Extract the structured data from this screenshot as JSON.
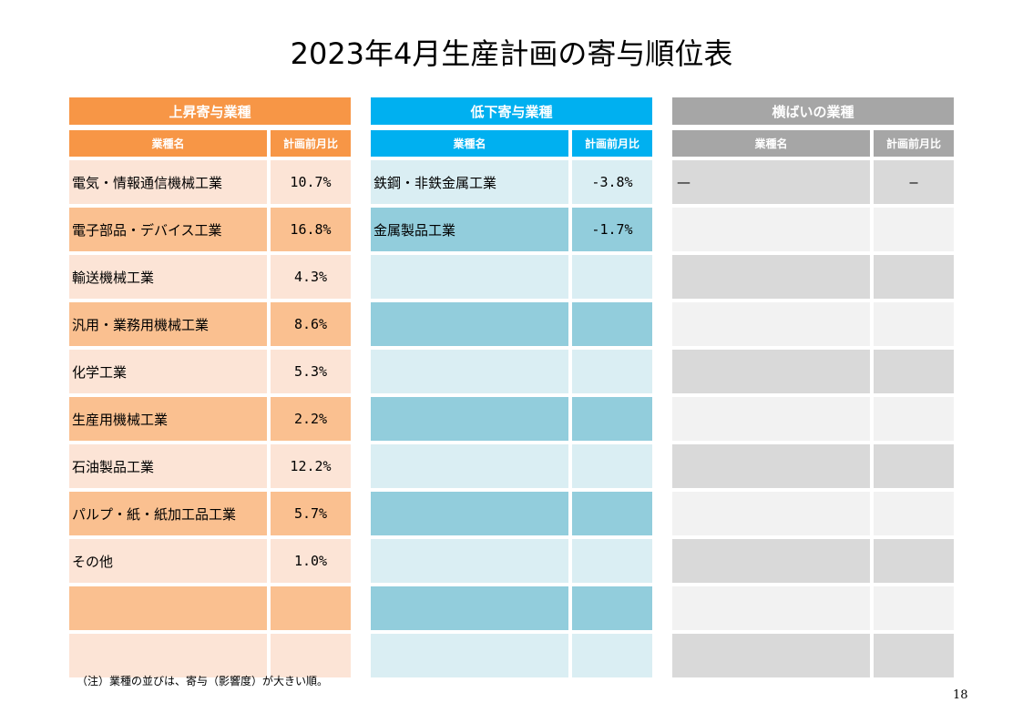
{
  "title": "2023年4月生産計画の寄与順位表",
  "groups": {
    "up": {
      "header": "上昇寄与業種",
      "col_name": "業種名",
      "col_value": "計画前月比",
      "rows": [
        {
          "name": "電気・情報通信機械工業",
          "value": "10.7%"
        },
        {
          "name": "電子部品・デバイス工業",
          "value": "16.8%"
        },
        {
          "name": "輸送機械工業",
          "value": "4.3%"
        },
        {
          "name": "汎用・業務用機械工業",
          "value": "8.6%"
        },
        {
          "name": "化学工業",
          "value": "5.3%"
        },
        {
          "name": "生産用機械工業",
          "value": "2.2%"
        },
        {
          "name": "石油製品工業",
          "value": "12.2%"
        },
        {
          "name": "パルプ・紙・紙加工品工業",
          "value": "5.7%"
        },
        {
          "name": "その他",
          "value": "1.0%"
        },
        {
          "name": "",
          "value": ""
        },
        {
          "name": "",
          "value": ""
        }
      ]
    },
    "down": {
      "header": "低下寄与業種",
      "col_name": "業種名",
      "col_value": "計画前月比",
      "rows": [
        {
          "name": "鉄鋼・非鉄金属工業",
          "value": "-3.8%"
        },
        {
          "name": "金属製品工業",
          "value": "-1.7%"
        },
        {
          "name": "",
          "value": ""
        },
        {
          "name": "",
          "value": ""
        },
        {
          "name": "",
          "value": ""
        },
        {
          "name": "",
          "value": ""
        },
        {
          "name": "",
          "value": ""
        },
        {
          "name": "",
          "value": ""
        },
        {
          "name": "",
          "value": ""
        },
        {
          "name": "",
          "value": ""
        },
        {
          "name": "",
          "value": ""
        }
      ]
    },
    "flat": {
      "header": "横ばいの業種",
      "col_name": "業種名",
      "col_value": "計画前月比",
      "rows": [
        {
          "name": "—",
          "value": "—"
        },
        {
          "name": "",
          "value": ""
        },
        {
          "name": "",
          "value": ""
        },
        {
          "name": "",
          "value": ""
        },
        {
          "name": "",
          "value": ""
        },
        {
          "name": "",
          "value": ""
        },
        {
          "name": "",
          "value": ""
        },
        {
          "name": "",
          "value": ""
        },
        {
          "name": "",
          "value": ""
        },
        {
          "name": "",
          "value": ""
        },
        {
          "name": "",
          "value": ""
        }
      ]
    }
  },
  "note": "（注）業種の並びは、寄与（影響度）が大きい順。",
  "page_number": "18",
  "colors": {
    "up_header": "#f79646",
    "up_light": "#fce4d6",
    "up_dark": "#fac090",
    "down_header": "#00b0f0",
    "down_light": "#daeef3",
    "down_dark": "#92cddc",
    "flat_header": "#a6a6a6",
    "flat_light": "#d9d9d9",
    "flat_dark": "#f2f2f2"
  }
}
